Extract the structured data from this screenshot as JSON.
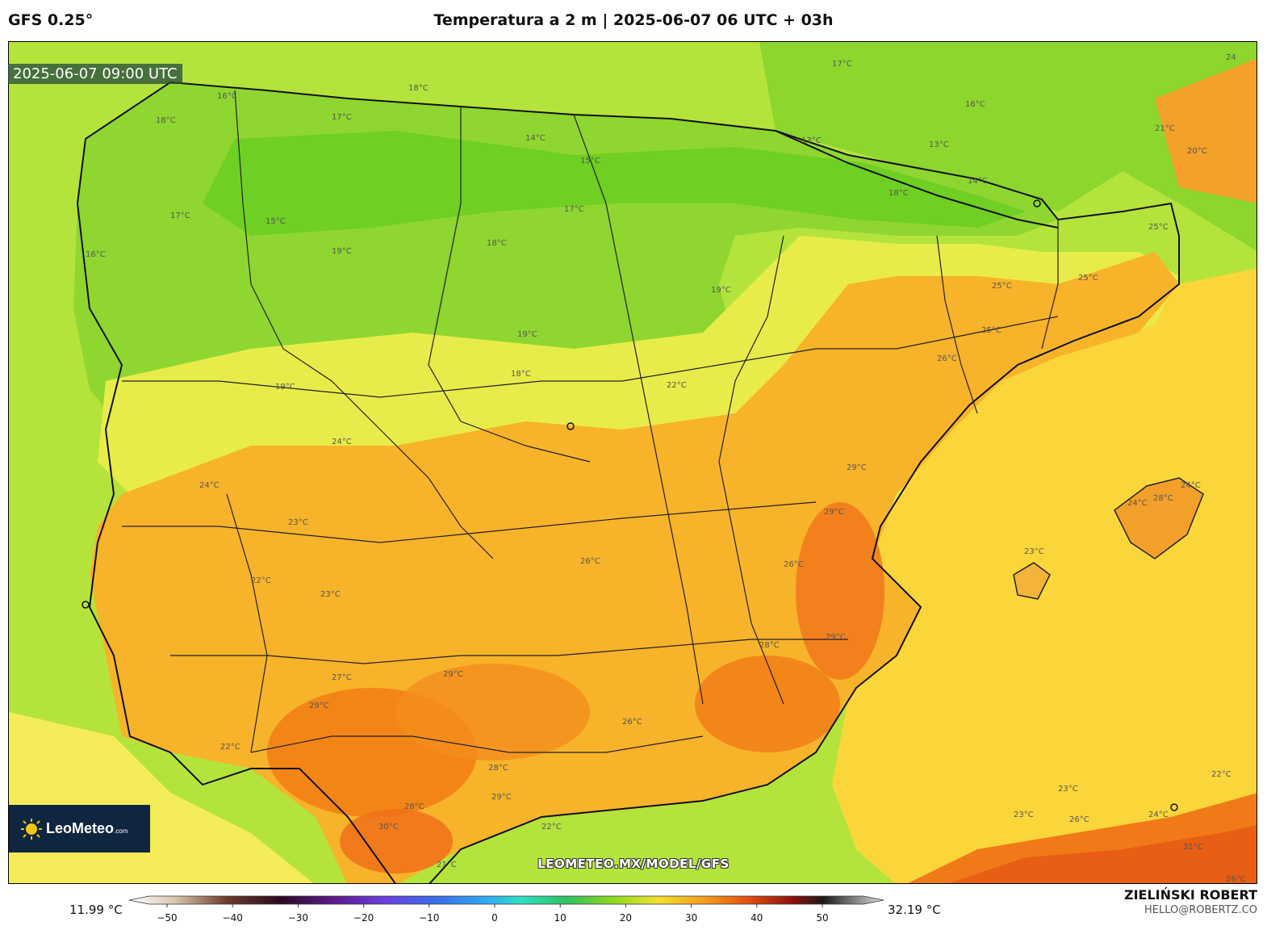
{
  "header": {
    "model": "GFS 0.25°",
    "title": "Temperatura a 2 m | 2025-06-07 06 UTC + 03h"
  },
  "map": {
    "valid_time": "2025-06-07 09:00 UTC",
    "region": "Iberian Peninsula",
    "contour_labels": [
      "16°C",
      "18°C",
      "18°C",
      "17°C",
      "14°C",
      "15°C",
      "17°C",
      "13°C",
      "13°C",
      "16°C",
      "14°C",
      "18°C",
      "24",
      "21°C",
      "20°C",
      "17°C",
      "15°C",
      "19°C",
      "16°C",
      "17°C",
      "18°C",
      "19°C",
      "19°C",
      "18°C",
      "19°C",
      "25°C",
      "25°C",
      "25°C",
      "25°C",
      "26°C",
      "22°C",
      "24°C",
      "24°C",
      "24°C",
      "29°C",
      "23°C",
      "29°C",
      "22°C",
      "26°C",
      "23°C",
      "23°C",
      "28°C",
      "24°C",
      "29°C",
      "27°C",
      "26°C",
      "28°C",
      "29°C",
      "23°C",
      "29°C",
      "28°C",
      "28°C",
      "29°C",
      "26°C",
      "30°C",
      "22°C",
      "21°C",
      "22°C",
      "23°C",
      "26°C",
      "24°C",
      "31°C",
      "26°C",
      "22°C"
    ]
  },
  "branding": {
    "logo_text": "LeoMeteo",
    "logo_suffix": ".com",
    "watermark": "LEOMETEO.MX/MODEL/GFS"
  },
  "colorbar": {
    "min_label": "11.99 °C",
    "max_label": "32.19 °C",
    "ticks": [
      "−50",
      "−40",
      "−30",
      "−20",
      "−10",
      "0",
      "10",
      "20",
      "30",
      "40",
      "50"
    ]
  },
  "credit": {
    "name": "ZIELIŃSKI ROBERT",
    "email": "HELLO@ROBERTZ.CO"
  },
  "colors": {
    "sea_green": "#a9e23a",
    "land_green": "#86d62e",
    "yellow": "#fde64a",
    "orange": "#f5a623",
    "deep_orange": "#f07a10",
    "sea_yellow": "#fbd83a"
  }
}
